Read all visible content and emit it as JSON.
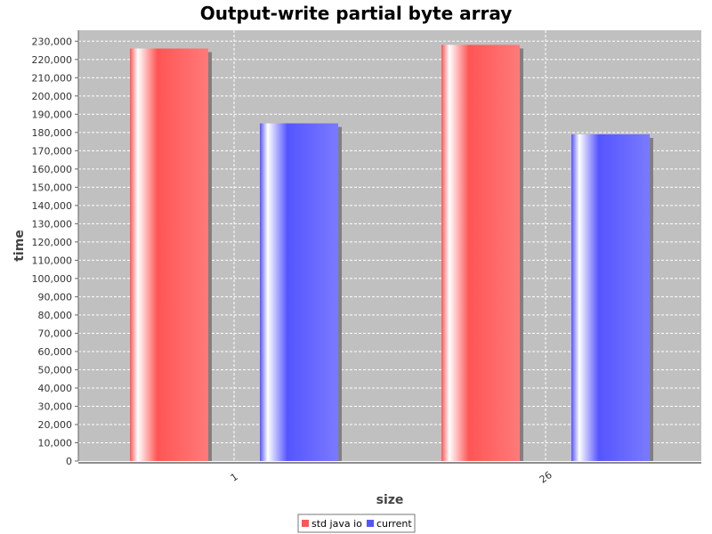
{
  "chart_data": {
    "type": "bar",
    "title": "Output-write partial byte array",
    "xlabel": "size",
    "ylabel": "time",
    "categories": [
      "1",
      "26"
    ],
    "series": [
      {
        "name": "std java io",
        "color": "#ff5555",
        "values": [
          226000,
          228000
        ]
      },
      {
        "name": "current",
        "color": "#5555ff",
        "values": [
          185000,
          179000
        ]
      }
    ],
    "ylim": [
      0,
      236000
    ],
    "yticks": [
      0,
      10000,
      20000,
      30000,
      40000,
      50000,
      60000,
      70000,
      80000,
      90000,
      100000,
      110000,
      120000,
      130000,
      140000,
      150000,
      160000,
      170000,
      180000,
      190000,
      200000,
      210000,
      220000,
      230000
    ],
    "grid": true,
    "legend": "bottom",
    "plot_background": "#c0c0c0"
  }
}
